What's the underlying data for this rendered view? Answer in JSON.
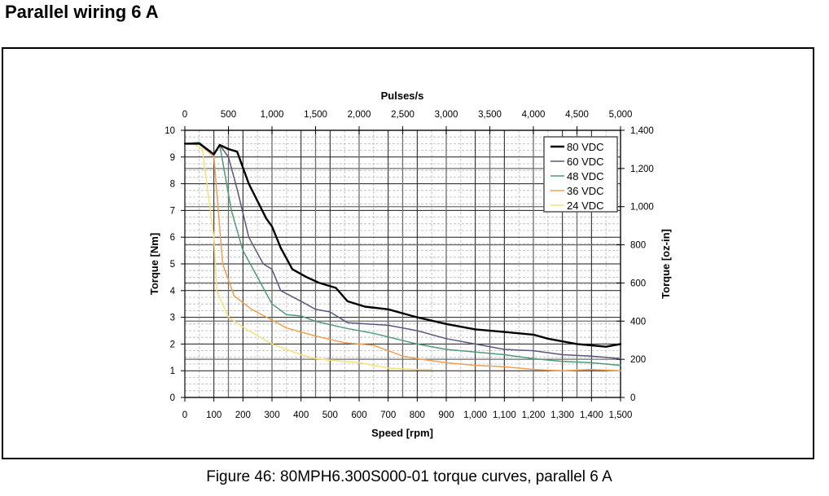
{
  "page": {
    "heading": "Parallel wiring 6 A",
    "caption": "Figure 46: 80MPH6.300S000-01 torque curves, parallel 6 A"
  },
  "chart_data": {
    "type": "line",
    "title": "",
    "xlabel": "Speed [rpm]",
    "ylabel": "Torque [Nm]",
    "x2label": "Pulses/s",
    "y2label": "Torque [oz-in]",
    "xlim": [
      0,
      1500
    ],
    "ylim": [
      0,
      10
    ],
    "x2lim": [
      0,
      5000
    ],
    "y2lim": [
      0,
      1400
    ],
    "xticks": [
      "0",
      "100",
      "200",
      "300",
      "400",
      "500",
      "600",
      "700",
      "800",
      "900",
      "1,000",
      "1,100",
      "1,200",
      "1,300",
      "1,400",
      "1,500"
    ],
    "xtick_values": [
      0,
      100,
      200,
      300,
      400,
      500,
      600,
      700,
      800,
      900,
      1000,
      1100,
      1200,
      1300,
      1400,
      1500
    ],
    "yticks": [
      "0",
      "1",
      "2",
      "3",
      "4",
      "5",
      "6",
      "7",
      "8",
      "9",
      "10"
    ],
    "ytick_values": [
      0,
      1,
      2,
      3,
      4,
      5,
      6,
      7,
      8,
      9,
      10
    ],
    "x2ticks": [
      "0",
      "500",
      "1,000",
      "1,500",
      "2,000",
      "2,500",
      "3,000",
      "3,500",
      "4,000",
      "4,500",
      "5,000"
    ],
    "x2tick_values": [
      0,
      500,
      1000,
      1500,
      2000,
      2500,
      3000,
      3500,
      4000,
      4500,
      5000
    ],
    "y2ticks": [
      "0",
      "200",
      "400",
      "600",
      "800",
      "1,000",
      "1,200",
      "1,400"
    ],
    "y2tick_values": [
      0,
      200,
      400,
      600,
      800,
      1000,
      1200,
      1400
    ],
    "grid": true,
    "legend_position": "top-right",
    "series": [
      {
        "name": "80 VDC",
        "color": "#000000",
        "x": [
          0,
          50,
          100,
          120,
          150,
          180,
          220,
          280,
          300,
          330,
          370,
          420,
          460,
          520,
          560,
          620,
          700,
          800,
          900,
          1000,
          1100,
          1200,
          1250,
          1350,
          1450,
          1500
        ],
        "y": [
          9.5,
          9.5,
          9.1,
          9.45,
          9.3,
          9.2,
          8.0,
          6.7,
          6.4,
          5.6,
          4.8,
          4.5,
          4.3,
          4.1,
          3.6,
          3.4,
          3.3,
          3.0,
          2.75,
          2.55,
          2.45,
          2.35,
          2.2,
          2.0,
          1.9,
          2.0
        ]
      },
      {
        "name": "60 VDC",
        "color": "#5a5680",
        "x": [
          0,
          50,
          100,
          120,
          150,
          180,
          220,
          270,
          300,
          330,
          400,
          450,
          500,
          560,
          700,
          800,
          900,
          1000,
          1100,
          1200,
          1300,
          1400,
          1500
        ],
        "y": [
          9.5,
          9.5,
          9.1,
          9.45,
          9.0,
          7.8,
          6.0,
          5.0,
          4.8,
          4.0,
          3.6,
          3.3,
          3.2,
          2.8,
          2.7,
          2.5,
          2.2,
          2.0,
          1.8,
          1.75,
          1.6,
          1.55,
          1.45
        ]
      },
      {
        "name": "48 VDC",
        "color": "#4f9a78",
        "x": [
          0,
          50,
          100,
          120,
          160,
          200,
          250,
          300,
          350,
          400,
          450,
          550,
          650,
          800,
          900,
          1000,
          1100,
          1200,
          1300,
          1400,
          1500
        ],
        "y": [
          9.5,
          9.55,
          9.1,
          9.45,
          7.0,
          5.5,
          4.5,
          3.5,
          3.1,
          3.05,
          2.85,
          2.6,
          2.4,
          2.0,
          1.8,
          1.7,
          1.6,
          1.45,
          1.35,
          1.3,
          1.2
        ]
      },
      {
        "name": "36 VDC",
        "color": "#f0a050",
        "x": [
          0,
          50,
          100,
          130,
          170,
          230,
          300,
          350,
          400,
          450,
          550,
          650,
          700,
          750,
          800,
          900,
          1000,
          1100,
          1200,
          1300,
          1400,
          1500
        ],
        "y": [
          9.5,
          9.5,
          9.0,
          5.0,
          3.8,
          3.3,
          2.9,
          2.6,
          2.45,
          2.3,
          2.05,
          1.95,
          1.75,
          1.55,
          1.45,
          1.3,
          1.2,
          1.15,
          1.05,
          1.0,
          1.05,
          1.0
        ]
      },
      {
        "name": "24 VDC",
        "color": "#f5e27a",
        "x": [
          0,
          30,
          60,
          100,
          110,
          150,
          220,
          300,
          400,
          450,
          500,
          600,
          700,
          800,
          850
        ],
        "y": [
          9.5,
          9.5,
          9.3,
          6.0,
          4.0,
          3.0,
          2.5,
          2.0,
          1.6,
          1.45,
          1.4,
          1.3,
          1.1,
          1.05,
          1.05
        ]
      }
    ]
  }
}
